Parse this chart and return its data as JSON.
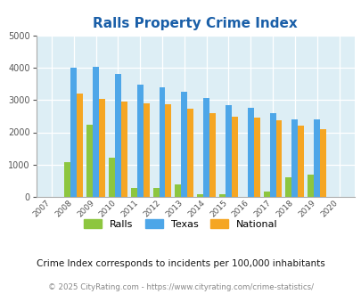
{
  "title": "Ralls Property Crime Index",
  "years": [
    2007,
    2008,
    2009,
    2010,
    2011,
    2012,
    2013,
    2014,
    2015,
    2016,
    2017,
    2018,
    2019,
    2020
  ],
  "ralls": [
    0,
    1070,
    2230,
    1210,
    290,
    290,
    390,
    80,
    80,
    0,
    160,
    620,
    690,
    0
  ],
  "texas": [
    0,
    4000,
    4030,
    3800,
    3480,
    3380,
    3260,
    3050,
    2840,
    2770,
    2580,
    2390,
    2390,
    0
  ],
  "national": [
    0,
    3190,
    3040,
    2940,
    2900,
    2870,
    2720,
    2600,
    2490,
    2450,
    2360,
    2200,
    2110,
    0
  ],
  "ralls_color": "#8dc63f",
  "texas_color": "#4da6e8",
  "national_color": "#f5a623",
  "bg_color": "#ddeef5",
  "ylim": [
    0,
    5000
  ],
  "yticks": [
    0,
    1000,
    2000,
    3000,
    4000,
    5000
  ],
  "title_color": "#1a5fa8",
  "title_fontsize": 11,
  "subtitle": "Crime Index corresponds to incidents per 100,000 inhabitants",
  "footer": "© 2025 CityRating.com - https://www.cityrating.com/crime-statistics/",
  "subtitle_color": "#1a1a1a",
  "footer_color": "#888888",
  "legend_labels": [
    "Ralls",
    "Texas",
    "National"
  ]
}
